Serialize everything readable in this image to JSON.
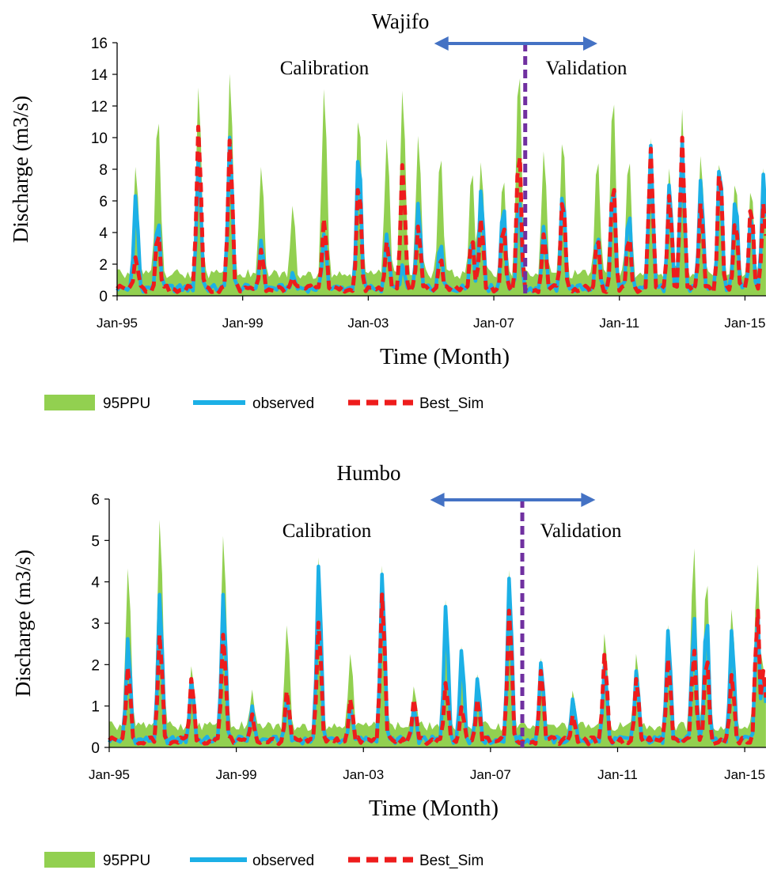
{
  "chart_data": [
    {
      "type": "area",
      "title": "Wajifo",
      "xlabel": "Time (Month)",
      "ylabel": "Discharge (m3/s)",
      "ylim": [
        0,
        16
      ],
      "yticks": [
        "0",
        "2",
        "4",
        "6",
        "8",
        "10",
        "12",
        "14",
        "16"
      ],
      "xticks": [
        "Jan-95",
        "Jan-99",
        "Jan-03",
        "Jan-07",
        "Jan-11",
        "Jan-15"
      ],
      "xrange": [
        1995.0,
        2015.67
      ],
      "annotations": {
        "calibration": "Calibration",
        "validation": "Validation"
      },
      "split_x": 2008.0,
      "arrow_range": [
        2005.1,
        2010.3
      ],
      "legend": [
        "95PPU",
        "observed",
        "Best_Sim"
      ],
      "colors": {
        "band": "#92d050",
        "observed": "#1cb0e6",
        "sim": "#ee1c1c",
        "split": "#7030a0",
        "arrow": "#4472c4"
      },
      "peaks": [
        [
          1995.6,
          6.5,
          2.5,
          8.3
        ],
        [
          1996.3,
          5.0,
          4.2,
          11.7
        ],
        [
          1997.6,
          9.0,
          11.0,
          13.4
        ],
        [
          1998.6,
          10.3,
          10.1,
          14.3
        ],
        [
          1999.6,
          3.6,
          3.0,
          8.3
        ],
        [
          2000.6,
          1.5,
          1.2,
          5.8
        ],
        [
          2001.6,
          4.0,
          5.0,
          13.3
        ],
        [
          2002.7,
          9.5,
          7.5,
          11.8
        ],
        [
          2003.6,
          4.0,
          3.5,
          10.1
        ],
        [
          2004.1,
          2.0,
          8.5,
          13.2
        ],
        [
          2004.6,
          6.0,
          4.5,
          10.3
        ],
        [
          2005.3,
          3.5,
          2.5,
          9.2
        ],
        [
          2006.3,
          3.8,
          3.8,
          8.2
        ],
        [
          2006.6,
          6.8,
          5.0,
          8.6
        ],
        [
          2007.3,
          6.0,
          4.7,
          7.7
        ],
        [
          2007.8,
          6.5,
          9.8,
          14.8
        ],
        [
          2008.6,
          4.5,
          4.0,
          9.3
        ],
        [
          2009.2,
          6.9,
          6.5,
          10.3
        ],
        [
          2010.3,
          4.0,
          3.8,
          9.0
        ],
        [
          2010.8,
          7.5,
          7.5,
          13.0
        ],
        [
          2011.3,
          5.5,
          4.0,
          9.0
        ],
        [
          2012.0,
          9.5,
          9.3,
          9.4
        ],
        [
          2012.6,
          7.2,
          6.5,
          8.2
        ],
        [
          2013.0,
          9.8,
          10.0,
          11.8
        ],
        [
          2013.6,
          7.5,
          6.0,
          9.0
        ],
        [
          2014.2,
          8.8,
          8.5,
          8.9
        ],
        [
          2014.7,
          6.5,
          5.0,
          7.5
        ],
        [
          2015.2,
          5.5,
          6.0,
          7.0
        ],
        [
          2015.6,
          7.9,
          6.0,
          7.8
        ]
      ]
    },
    {
      "type": "area",
      "title": "Humbo",
      "xlabel": "Time (Month)",
      "ylabel": "Discharge (m3/s)",
      "ylim": [
        0,
        6
      ],
      "yticks": [
        "0",
        "1",
        "2",
        "3",
        "4",
        "5",
        "6"
      ],
      "xticks": [
        "Jan-95",
        "Jan-99",
        "Jan-03",
        "Jan-07",
        "Jan-11",
        "Jan-15"
      ],
      "xrange": [
        1995.0,
        2015.67
      ],
      "annotations": {
        "calibration": "Calibration",
        "validation": "Validation"
      },
      "split_x": 2008.0,
      "arrow_range": [
        2005.1,
        2010.3
      ],
      "legend": [
        "95PPU",
        "observed",
        "Best_Sim"
      ],
      "colors": {
        "band": "#92d050",
        "observed": "#1cb0e6",
        "sim": "#ee1c1c",
        "split": "#7030a0",
        "arrow": "#4472c4"
      },
      "peaks": [
        [
          1995.6,
          2.7,
          2.0,
          4.4
        ],
        [
          1996.6,
          3.8,
          2.8,
          5.6
        ],
        [
          1997.6,
          1.7,
          1.7,
          2.0
        ],
        [
          1998.6,
          3.8,
          2.8,
          5.2
        ],
        [
          1999.5,
          1.0,
          0.8,
          1.4
        ],
        [
          2000.6,
          1.2,
          1.4,
          3.0
        ],
        [
          2001.6,
          4.5,
          3.1,
          4.5
        ],
        [
          2002.6,
          1.0,
          1.2,
          2.3
        ],
        [
          2003.6,
          4.3,
          3.8,
          4.3
        ],
        [
          2004.6,
          1.0,
          1.2,
          1.5
        ],
        [
          2005.6,
          3.5,
          1.6,
          3.0
        ],
        [
          2006.1,
          2.4,
          1.0,
          2.0
        ],
        [
          2006.6,
          1.7,
          1.2,
          1.8
        ],
        [
          2007.6,
          4.2,
          3.4,
          4.1
        ],
        [
          2008.6,
          2.1,
          1.9,
          2.2
        ],
        [
          2009.6,
          1.2,
          0.8,
          1.4
        ],
        [
          2010.6,
          2.0,
          2.3,
          2.8
        ],
        [
          2011.6,
          1.9,
          1.7,
          2.3
        ],
        [
          2012.6,
          2.9,
          2.2,
          2.8
        ],
        [
          2013.4,
          3.2,
          2.4,
          4.9
        ],
        [
          2013.8,
          3.3,
          2.3,
          4.2
        ],
        [
          2014.6,
          2.9,
          1.8,
          3.4
        ],
        [
          2015.4,
          3.3,
          3.4,
          4.5
        ],
        [
          2015.6,
          1.7,
          1.9,
          1.8
        ]
      ]
    }
  ]
}
